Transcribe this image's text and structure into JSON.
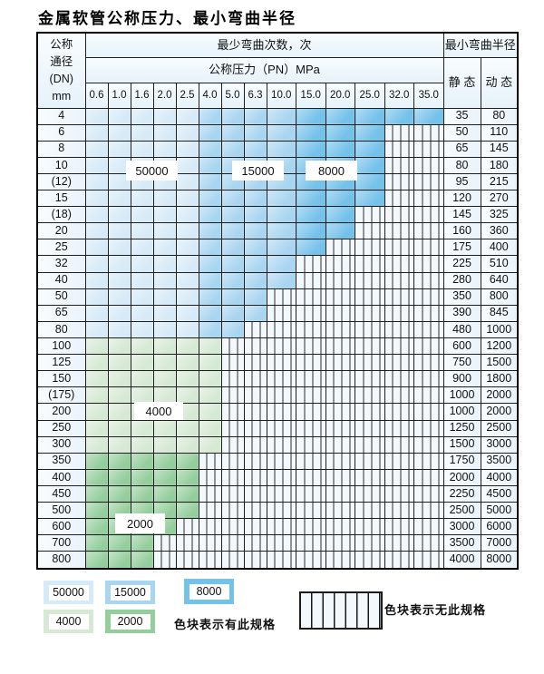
{
  "page_title": "金属软管公称压力、最小弯曲半径",
  "table": {
    "dn_header_lines": [
      "公称",
      "通径",
      "(DN)",
      "mm"
    ],
    "min_cycles_header": "最少弯曲次数，次",
    "pressure_header": "公称压力（PN）MPa",
    "min_radius_header": "最小弯曲半径",
    "static_header": "静 态",
    "dynamic_header": "动 态",
    "pressure_columns": [
      "0.6",
      "1.0",
      "1.6",
      "2.0",
      "2.5",
      "4.0",
      "5.0",
      "6.3",
      "10.0",
      "15.0",
      "20.0",
      "25.0",
      "32.0",
      "35.0"
    ],
    "blue_grade_breaks": {
      "c50000_through_col": 5,
      "c15000_through_col": 9
    },
    "rows": [
      {
        "dn": "4",
        "colored_through": 14,
        "band": "blue",
        "static": "35",
        "dynamic": "80"
      },
      {
        "dn": "6",
        "colored_through": 12,
        "band": "blue",
        "static": "50",
        "dynamic": "110"
      },
      {
        "dn": "8",
        "colored_through": 12,
        "band": "blue",
        "static": "65",
        "dynamic": "145"
      },
      {
        "dn": "10",
        "colored_through": 12,
        "band": "blue",
        "static": "80",
        "dynamic": "180"
      },
      {
        "dn": "(12)",
        "colored_through": 12,
        "band": "blue",
        "static": "95",
        "dynamic": "215"
      },
      {
        "dn": "15",
        "colored_through": 12,
        "band": "blue",
        "static": "120",
        "dynamic": "270"
      },
      {
        "dn": "(18)",
        "colored_through": 11,
        "band": "blue",
        "static": "145",
        "dynamic": "325"
      },
      {
        "dn": "20",
        "colored_through": 11,
        "band": "blue",
        "static": "160",
        "dynamic": "360"
      },
      {
        "dn": "25",
        "colored_through": 10,
        "band": "blue",
        "static": "175",
        "dynamic": "400"
      },
      {
        "dn": "32",
        "colored_through": 9,
        "band": "blue",
        "static": "225",
        "dynamic": "510"
      },
      {
        "dn": "40",
        "colored_through": 9,
        "band": "blue",
        "static": "280",
        "dynamic": "640"
      },
      {
        "dn": "50",
        "colored_through": 8,
        "band": "blue",
        "static": "350",
        "dynamic": "800"
      },
      {
        "dn": "65",
        "colored_through": 8,
        "band": "blue",
        "static": "390",
        "dynamic": "845"
      },
      {
        "dn": "80",
        "colored_through": 7,
        "band": "blue",
        "static": "480",
        "dynamic": "1000"
      },
      {
        "dn": "100",
        "colored_through": 6,
        "band": "green4000",
        "static": "600",
        "dynamic": "1200"
      },
      {
        "dn": "125",
        "colored_through": 6,
        "band": "green4000",
        "static": "750",
        "dynamic": "1500"
      },
      {
        "dn": "150",
        "colored_through": 6,
        "band": "green4000",
        "static": "900",
        "dynamic": "1800"
      },
      {
        "dn": "(175)",
        "colored_through": 6,
        "band": "green4000",
        "static": "1000",
        "dynamic": "2000"
      },
      {
        "dn": "200",
        "colored_through": 6,
        "band": "green4000",
        "static": "1000",
        "dynamic": "2000"
      },
      {
        "dn": "250",
        "colored_through": 6,
        "band": "green4000",
        "static": "1250",
        "dynamic": "2500"
      },
      {
        "dn": "300",
        "colored_through": 6,
        "band": "green4000",
        "static": "1500",
        "dynamic": "3000"
      },
      {
        "dn": "350",
        "colored_through": 5,
        "band": "green2000",
        "static": "1750",
        "dynamic": "3500"
      },
      {
        "dn": "400",
        "colored_through": 5,
        "band": "green2000",
        "static": "2000",
        "dynamic": "4000"
      },
      {
        "dn": "450",
        "colored_through": 5,
        "band": "green2000",
        "static": "2250",
        "dynamic": "4500"
      },
      {
        "dn": "500",
        "colored_through": 5,
        "band": "green2000",
        "static": "2500",
        "dynamic": "5000"
      },
      {
        "dn": "600",
        "colored_through": 4,
        "band": "green2000",
        "static": "3000",
        "dynamic": "6000"
      },
      {
        "dn": "700",
        "colored_through": 3,
        "band": "green2000",
        "static": "3500",
        "dynamic": "7000"
      },
      {
        "dn": "800",
        "colored_through": 3,
        "band": "green2000",
        "static": "4000",
        "dynamic": "8000"
      }
    ]
  },
  "cycle_labels": {
    "b50000": "50000",
    "b15000": "15000",
    "b8000": "8000",
    "g4000": "4000",
    "g2000": "2000"
  },
  "legend": {
    "swatches": [
      {
        "label": "50000",
        "color_key": "c50000"
      },
      {
        "label": "15000",
        "color_key": "c15000"
      },
      {
        "label": "8000",
        "color_key": "c8000"
      },
      {
        "label": "4000",
        "color_key": "c4000"
      },
      {
        "label": "2000",
        "color_key": "c2000"
      }
    ],
    "has_spec_note": "色块表示有此规格",
    "no_spec_note": "色块表示无此规格"
  },
  "colors": {
    "c50000": "#d6eaf7",
    "c15000": "#a9d5f0",
    "c8000": "#74c1ea",
    "c4000": "#d6e9d4",
    "c2000": "#95ce9d",
    "header_bg": "#e6f2fa",
    "label_col_bg": "#eaf3fb",
    "hatch_bg": "#f2f8fc"
  }
}
